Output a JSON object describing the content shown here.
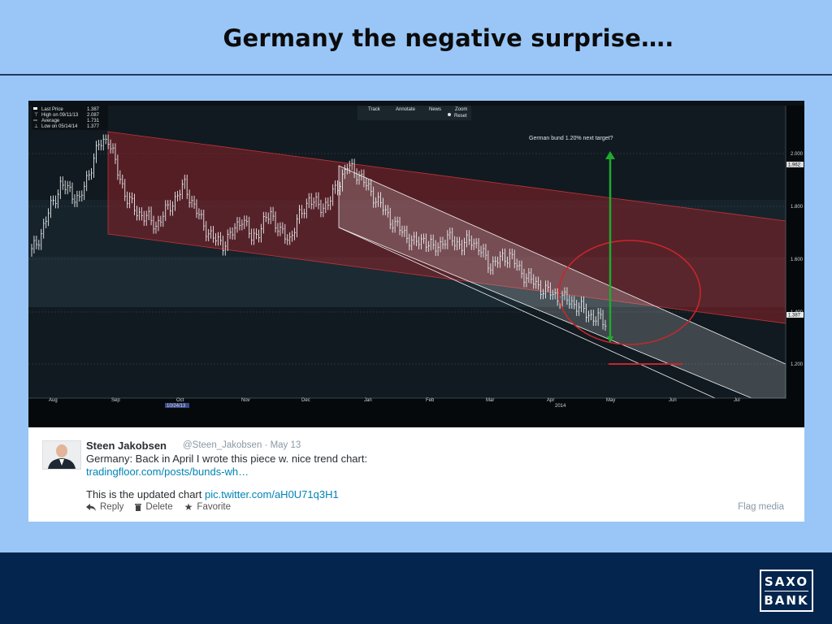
{
  "slide": {
    "title": "Germany the negative surprise…."
  },
  "chart": {
    "toolbar": [
      "Track",
      "Annotate",
      "News",
      "Zoom"
    ],
    "reset_label": "Reset",
    "legend": [
      {
        "label": "Last Price",
        "value": "1.387"
      },
      {
        "label": "High on 09/11/13",
        "value": "2.087"
      },
      {
        "label": "Average",
        "value": "1.731"
      },
      {
        "label": "Low on 05/14/14",
        "value": "1.377"
      }
    ],
    "annotation": "German bund 1.20% next target?",
    "y_ticks": [
      "2.000",
      "1.800",
      "1.600",
      "1.400",
      "1.200"
    ],
    "price_tags": [
      "1.962",
      "1.387"
    ],
    "x_ticks": [
      "Aug",
      "Sep",
      "Oct",
      "Nov",
      "Dec",
      "Jan",
      "Feb",
      "Mar",
      "Apr",
      "May",
      "Jun",
      "Jul"
    ],
    "date_badge": "10/24/13",
    "year_label": "2014"
  },
  "chart_data": {
    "type": "candlestick",
    "title": "",
    "ylim": [
      1.1,
      2.2
    ],
    "series": [
      {
        "values": [
          1.65,
          1.72,
          1.82,
          1.9,
          1.88,
          1.84,
          1.95,
          2.05,
          2.08,
          1.95,
          1.85,
          1.8,
          1.78,
          1.75,
          1.8,
          1.85,
          1.9,
          1.82,
          1.75,
          1.7,
          1.68,
          1.72,
          1.78,
          1.7,
          1.74,
          1.8,
          1.72,
          1.7,
          1.78,
          1.85,
          1.82,
          1.83,
          1.9,
          1.97,
          1.95,
          1.9,
          1.85,
          1.8,
          1.75,
          1.72,
          1.68,
          1.7,
          1.66,
          1.69,
          1.7,
          1.67,
          1.7,
          1.65,
          1.6,
          1.62,
          1.64,
          1.58,
          1.55,
          1.52,
          1.5,
          1.48,
          1.47,
          1.45,
          1.42,
          1.4,
          1.387
        ]
      }
    ],
    "annotations": [
      "German bund 1.20% next target?"
    ]
  },
  "tweet": {
    "author": "Steen Jakobsen",
    "handle_date": "@Steen_Jakobsen · May 13",
    "line1": "Germany: Back in April I wrote this piece w. nice trend chart:",
    "link1": "tradingfloor.com/posts/bunds-wh…",
    "line2_text": "This is the updated chart ",
    "link2": "pic.twitter.com/aH0U71q3H1",
    "actions": {
      "reply": "Reply",
      "delete": "Delete",
      "favorite": "Favorite"
    },
    "flag": "Flag media"
  },
  "logo": {
    "line1": "SAXO",
    "line2": "BANK"
  },
  "colors": {
    "slide_bg": "#99c6f6",
    "footer_bg": "#04254d",
    "channel_red": "#b0262b",
    "channel_white": "#e8e8ec",
    "target_arrow": "#1faa2f",
    "link": "#0084b4"
  }
}
